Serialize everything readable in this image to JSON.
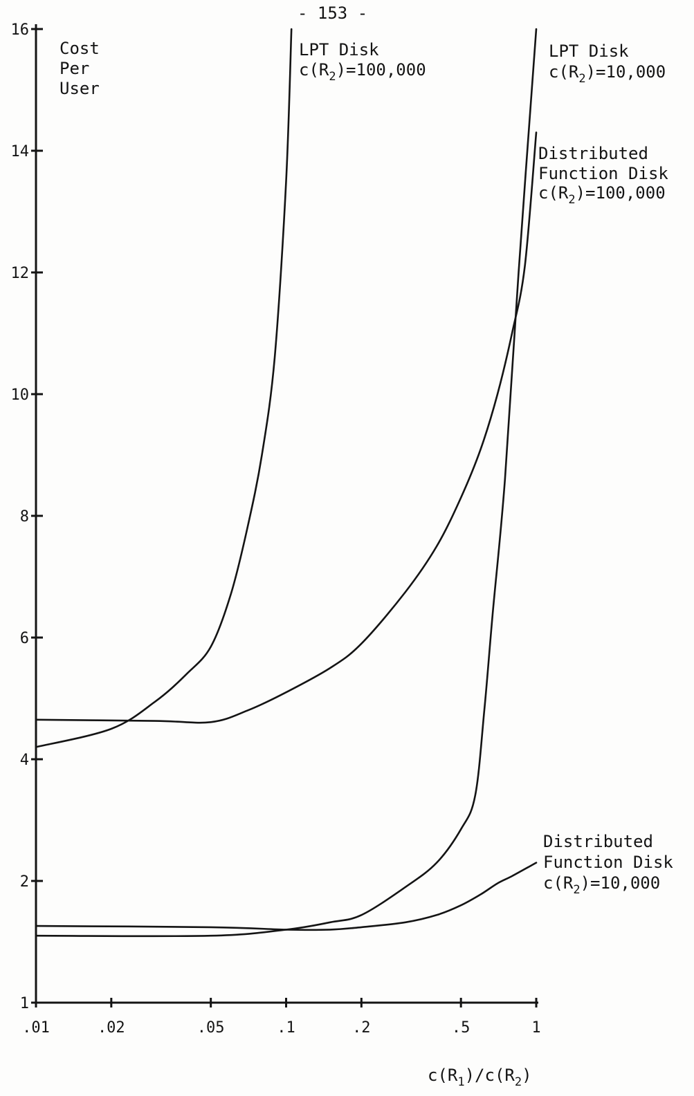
{
  "page_number": "- 153 -",
  "chart_data": {
    "type": "line",
    "title": "",
    "ylabel_lines": [
      "Cost",
      "Per",
      "User"
    ],
    "xlabel": {
      "base_c": "c(R",
      "sub1": "1",
      "mid": ")/c(R",
      "sub2": "2",
      "end": ")"
    },
    "x_scale": "log",
    "xlim": [
      0.01,
      1
    ],
    "ylim": [
      1,
      16
    ],
    "x_ticks": [
      0.01,
      0.02,
      0.05,
      0.1,
      0.2,
      0.5,
      1
    ],
    "x_tick_labels": [
      ".01",
      ".02",
      ".05",
      ".1",
      ".2",
      ".5",
      "1"
    ],
    "y_ticks": [
      1,
      2,
      4,
      6,
      8,
      10,
      12,
      14,
      16
    ],
    "y_tick_labels": [
      "1",
      "2",
      "4",
      "6",
      "8",
      "10",
      "12",
      "14",
      "16"
    ],
    "grid": false,
    "series": [
      {
        "key": "lpt_100k",
        "label_lines": [
          "LPT Disk",
          "c(R",
          "2",
          ")=100,000"
        ],
        "x": [
          0.01,
          0.02,
          0.03,
          0.04,
          0.05,
          0.06,
          0.07,
          0.08,
          0.09,
          0.1,
          0.105
        ],
        "y": [
          4.2,
          4.5,
          4.95,
          5.4,
          5.85,
          6.7,
          7.8,
          9.0,
          10.6,
          13.5,
          16.0
        ]
      },
      {
        "key": "lpt_10k",
        "label_lines": [
          "LPT Disk",
          "c(R",
          "2",
          ")=10,000"
        ],
        "x": [
          0.01,
          0.05,
          0.1,
          0.15,
          0.2,
          0.3,
          0.4,
          0.5,
          0.57,
          0.62,
          0.67,
          0.75,
          0.85,
          1.0
        ],
        "y": [
          1.55,
          1.55,
          1.6,
          1.66,
          1.72,
          1.95,
          2.3,
          2.85,
          3.4,
          4.8,
          6.4,
          8.6,
          12.0,
          16.0
        ]
      },
      {
        "key": "dfd_100k",
        "label_lines": [
          "Distributed",
          "Function Disk",
          "c(R",
          "2",
          ")=100,000"
        ],
        "x": [
          0.01,
          0.03,
          0.05,
          0.07,
          0.1,
          0.15,
          0.2,
          0.3,
          0.4,
          0.5,
          0.6,
          0.7,
          0.8,
          0.9,
          1.0
        ],
        "y": [
          4.65,
          4.63,
          4.61,
          4.8,
          5.1,
          5.5,
          5.9,
          6.75,
          7.5,
          8.3,
          9.1,
          10.0,
          11.0,
          12.1,
          14.3
        ]
      },
      {
        "key": "dfd_10k",
        "label_lines": [
          "Distributed",
          "Function Disk",
          "c(R",
          "2",
          ")=10,000"
        ],
        "x": [
          0.01,
          0.05,
          0.1,
          0.15,
          0.2,
          0.3,
          0.4,
          0.5,
          0.6,
          0.7,
          0.8,
          1.0
        ],
        "y": [
          1.63,
          1.62,
          1.6,
          1.6,
          1.62,
          1.66,
          1.72,
          1.8,
          1.89,
          1.98,
          2.08,
          2.3
        ]
      }
    ]
  }
}
